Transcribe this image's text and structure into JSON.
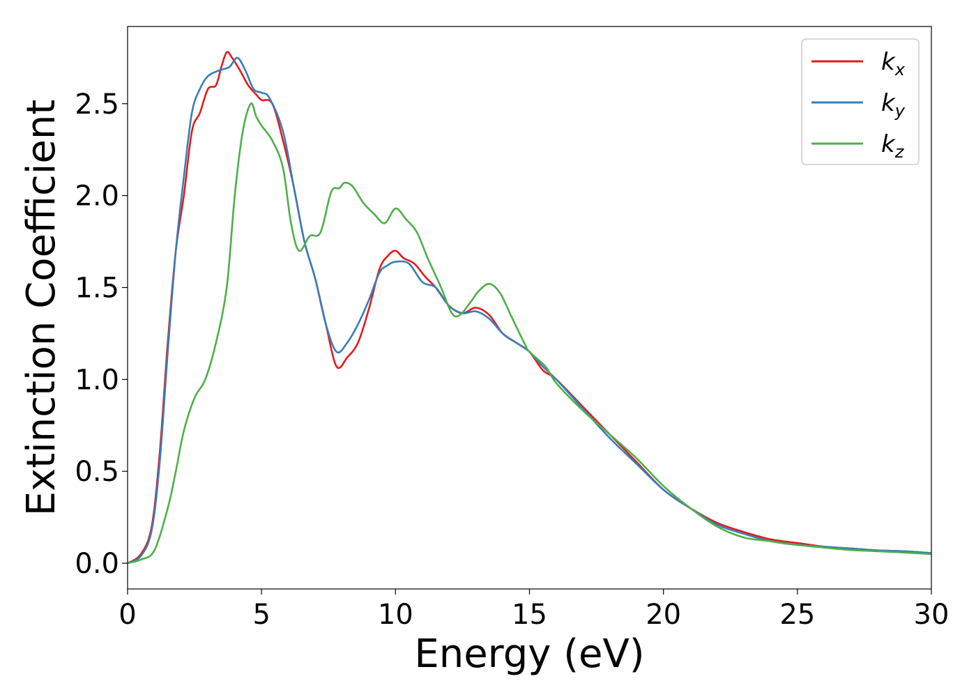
{
  "chart_data": {
    "type": "line",
    "title": "",
    "xlabel": "Energy (eV)",
    "ylabel": "Extinction Coefficient",
    "xlim": [
      0,
      30
    ],
    "ylim": [
      -0.14,
      2.92
    ],
    "xticks": [
      0,
      5,
      10,
      15,
      20,
      25,
      30
    ],
    "xtick_labels": [
      "0",
      "5",
      "10",
      "15",
      "20",
      "25",
      "30"
    ],
    "yticks": [
      0.0,
      0.5,
      1.0,
      1.5,
      2.0,
      2.5
    ],
    "ytick_labels": [
      "0.0",
      "0.5",
      "1.0",
      "1.5",
      "2.0",
      "2.5"
    ],
    "grid": false,
    "legend_position": "top-right",
    "series": [
      {
        "name": "k",
        "subscript": "x",
        "color": "#e41a1c",
        "points": [
          [
            0,
            0
          ],
          [
            0.5,
            0.05
          ],
          [
            0.9,
            0.2
          ],
          [
            1.2,
            0.6
          ],
          [
            1.5,
            1.2
          ],
          [
            1.8,
            1.7
          ],
          [
            2.1,
            2.0
          ],
          [
            2.4,
            2.35
          ],
          [
            2.7,
            2.45
          ],
          [
            3.0,
            2.58
          ],
          [
            3.3,
            2.6
          ],
          [
            3.5,
            2.7
          ],
          [
            3.7,
            2.78
          ],
          [
            3.9,
            2.75
          ],
          [
            4.2,
            2.68
          ],
          [
            4.5,
            2.6
          ],
          [
            4.8,
            2.55
          ],
          [
            5.0,
            2.52
          ],
          [
            5.4,
            2.5
          ],
          [
            5.8,
            2.3
          ],
          [
            6.2,
            2.05
          ],
          [
            6.6,
            1.75
          ],
          [
            7.0,
            1.55
          ],
          [
            7.4,
            1.3
          ],
          [
            7.8,
            1.07
          ],
          [
            8.2,
            1.12
          ],
          [
            8.6,
            1.2
          ],
          [
            9.0,
            1.38
          ],
          [
            9.4,
            1.6
          ],
          [
            9.7,
            1.67
          ],
          [
            10.0,
            1.7
          ],
          [
            10.3,
            1.66
          ],
          [
            10.7,
            1.63
          ],
          [
            11.1,
            1.56
          ],
          [
            11.5,
            1.5
          ],
          [
            12.0,
            1.4
          ],
          [
            12.5,
            1.36
          ],
          [
            13.0,
            1.39
          ],
          [
            13.5,
            1.35
          ],
          [
            14.0,
            1.25
          ],
          [
            14.5,
            1.2
          ],
          [
            15.0,
            1.15
          ],
          [
            15.5,
            1.05
          ],
          [
            16.0,
            1.0
          ],
          [
            17.0,
            0.85
          ],
          [
            18.0,
            0.7
          ],
          [
            19.0,
            0.55
          ],
          [
            20.0,
            0.4
          ],
          [
            21.0,
            0.3
          ],
          [
            22.0,
            0.22
          ],
          [
            23.0,
            0.17
          ],
          [
            24.0,
            0.13
          ],
          [
            25.0,
            0.11
          ],
          [
            26.0,
            0.09
          ],
          [
            27.0,
            0.08
          ],
          [
            28.0,
            0.07
          ],
          [
            29.0,
            0.065
          ],
          [
            30.0,
            0.055
          ]
        ]
      },
      {
        "name": "k",
        "subscript": "y",
        "color": "#377eb8",
        "points": [
          [
            0,
            0
          ],
          [
            0.5,
            0.04
          ],
          [
            0.9,
            0.18
          ],
          [
            1.2,
            0.55
          ],
          [
            1.5,
            1.15
          ],
          [
            1.8,
            1.7
          ],
          [
            2.1,
            2.1
          ],
          [
            2.4,
            2.45
          ],
          [
            2.7,
            2.58
          ],
          [
            3.0,
            2.65
          ],
          [
            3.4,
            2.68
          ],
          [
            3.8,
            2.7
          ],
          [
            4.1,
            2.75
          ],
          [
            4.4,
            2.68
          ],
          [
            4.7,
            2.58
          ],
          [
            5.0,
            2.56
          ],
          [
            5.3,
            2.53
          ],
          [
            5.8,
            2.35
          ],
          [
            6.2,
            2.05
          ],
          [
            6.6,
            1.75
          ],
          [
            7.0,
            1.55
          ],
          [
            7.4,
            1.3
          ],
          [
            7.8,
            1.15
          ],
          [
            8.2,
            1.2
          ],
          [
            8.6,
            1.3
          ],
          [
            9.0,
            1.43
          ],
          [
            9.4,
            1.58
          ],
          [
            9.7,
            1.62
          ],
          [
            10.0,
            1.64
          ],
          [
            10.5,
            1.63
          ],
          [
            11.0,
            1.53
          ],
          [
            11.5,
            1.5
          ],
          [
            12.0,
            1.4
          ],
          [
            12.5,
            1.36
          ],
          [
            13.0,
            1.37
          ],
          [
            13.5,
            1.33
          ],
          [
            14.0,
            1.25
          ],
          [
            14.5,
            1.2
          ],
          [
            15.0,
            1.15
          ],
          [
            15.5,
            1.07
          ],
          [
            16.0,
            1.0
          ],
          [
            17.0,
            0.84
          ],
          [
            18.0,
            0.68
          ],
          [
            19.0,
            0.54
          ],
          [
            20.0,
            0.4
          ],
          [
            21.0,
            0.3
          ],
          [
            22.0,
            0.21
          ],
          [
            23.0,
            0.16
          ],
          [
            24.0,
            0.12
          ],
          [
            25.0,
            0.1
          ],
          [
            26.0,
            0.09
          ],
          [
            27.0,
            0.08
          ],
          [
            28.0,
            0.07
          ],
          [
            29.0,
            0.065
          ],
          [
            30.0,
            0.055
          ]
        ]
      },
      {
        "name": "k",
        "subscript": "z",
        "color": "#4daf4a",
        "points": [
          [
            0,
            0
          ],
          [
            0.5,
            0.02
          ],
          [
            1.0,
            0.07
          ],
          [
            1.5,
            0.3
          ],
          [
            1.8,
            0.5
          ],
          [
            2.1,
            0.72
          ],
          [
            2.5,
            0.9
          ],
          [
            2.9,
            1.0
          ],
          [
            3.3,
            1.2
          ],
          [
            3.7,
            1.5
          ],
          [
            4.0,
            2.0
          ],
          [
            4.3,
            2.35
          ],
          [
            4.6,
            2.5
          ],
          [
            4.8,
            2.43
          ],
          [
            5.0,
            2.38
          ],
          [
            5.4,
            2.3
          ],
          [
            5.8,
            2.15
          ],
          [
            6.1,
            1.85
          ],
          [
            6.4,
            1.7
          ],
          [
            6.8,
            1.78
          ],
          [
            7.2,
            1.8
          ],
          [
            7.6,
            2.02
          ],
          [
            7.9,
            2.04
          ],
          [
            8.1,
            2.07
          ],
          [
            8.4,
            2.05
          ],
          [
            8.8,
            1.96
          ],
          [
            9.2,
            1.9
          ],
          [
            9.6,
            1.85
          ],
          [
            10.0,
            1.93
          ],
          [
            10.4,
            1.87
          ],
          [
            10.8,
            1.8
          ],
          [
            11.2,
            1.66
          ],
          [
            11.7,
            1.5
          ],
          [
            12.1,
            1.36
          ],
          [
            12.4,
            1.35
          ],
          [
            12.8,
            1.42
          ],
          [
            13.1,
            1.48
          ],
          [
            13.5,
            1.52
          ],
          [
            13.9,
            1.47
          ],
          [
            14.3,
            1.35
          ],
          [
            14.8,
            1.2
          ],
          [
            15.0,
            1.15
          ],
          [
            15.6,
            1.07
          ],
          [
            16.0,
            0.98
          ],
          [
            17.0,
            0.83
          ],
          [
            18.0,
            0.7
          ],
          [
            19.0,
            0.57
          ],
          [
            20.0,
            0.42
          ],
          [
            21.0,
            0.3
          ],
          [
            22.0,
            0.2
          ],
          [
            23.0,
            0.14
          ],
          [
            24.0,
            0.12
          ],
          [
            25.0,
            0.1
          ],
          [
            26.0,
            0.085
          ],
          [
            27.0,
            0.072
          ],
          [
            28.0,
            0.065
          ],
          [
            29.0,
            0.058
          ],
          [
            30.0,
            0.05
          ]
        ]
      }
    ]
  }
}
